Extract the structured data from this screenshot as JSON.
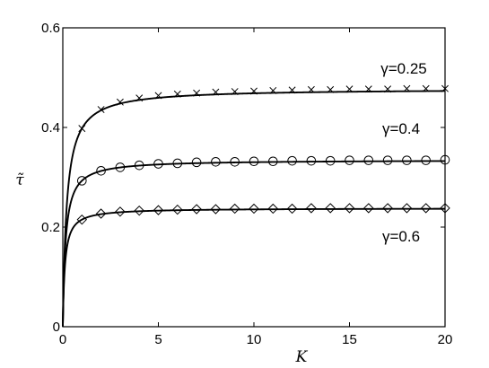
{
  "chart_data": {
    "type": "line",
    "title": "",
    "xlabel": "K",
    "ylabel": "τ̃",
    "xlim": [
      0,
      20
    ],
    "ylim": [
      0,
      0.6
    ],
    "xticks": [
      0,
      5,
      10,
      15,
      20
    ],
    "xtick_labels": [
      "0",
      "5",
      "10",
      "15",
      "20"
    ],
    "yticks": [
      0,
      0.2,
      0.4,
      0.6
    ],
    "ytick_labels": [
      "0",
      "0.2",
      "0.4",
      "0.6"
    ],
    "grid": false,
    "series": [
      {
        "marker": "x",
        "annotation": "γ=0.25",
        "x": [
          1,
          2,
          3,
          4,
          5,
          6,
          7,
          8,
          9,
          10,
          11,
          12,
          13,
          14,
          15,
          16,
          17,
          18,
          19,
          20
        ],
        "y": [
          0.398,
          0.436,
          0.451,
          0.459,
          0.464,
          0.467,
          0.469,
          0.471,
          0.472,
          0.473,
          0.474,
          0.475,
          0.476,
          0.476,
          0.477,
          0.477,
          0.477,
          0.478,
          0.478,
          0.478
        ]
      },
      {
        "marker": "o",
        "annotation": "γ=0.4",
        "x": [
          1,
          2,
          3,
          4,
          5,
          6,
          7,
          8,
          9,
          10,
          11,
          12,
          13,
          14,
          15,
          16,
          17,
          18,
          19,
          20
        ],
        "y": [
          0.293,
          0.313,
          0.32,
          0.324,
          0.327,
          0.328,
          0.33,
          0.331,
          0.331,
          0.332,
          0.332,
          0.333,
          0.333,
          0.333,
          0.334,
          0.334,
          0.334,
          0.334,
          0.334,
          0.335
        ]
      },
      {
        "marker": "diamond",
        "annotation": "γ=0.6",
        "x": [
          1,
          2,
          3,
          4,
          5,
          6,
          7,
          8,
          9,
          10,
          11,
          12,
          13,
          14,
          15,
          16,
          17,
          18,
          19,
          20
        ],
        "y": [
          0.215,
          0.227,
          0.231,
          0.233,
          0.234,
          0.235,
          0.236,
          0.236,
          0.237,
          0.237,
          0.237,
          0.237,
          0.238,
          0.238,
          0.238,
          0.238,
          0.238,
          0.238,
          0.238,
          0.238
        ]
      }
    ]
  }
}
